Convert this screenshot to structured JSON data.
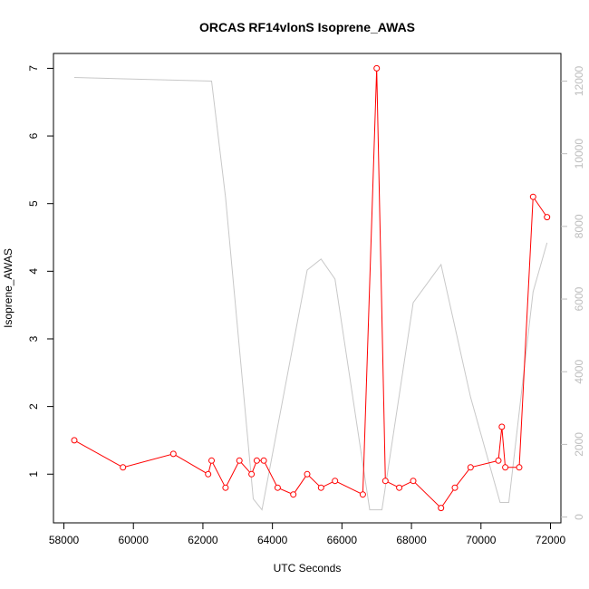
{
  "chart_data": {
    "type": "line",
    "title": "ORCAS RF14vlonS Isoprene_AWAS",
    "xlabel": "UTC Seconds",
    "ylabel": "Isoprene_AWAS",
    "y2label": "",
    "xlim": [
      57700,
      72300
    ],
    "ylim": [
      0.28,
      7.22
    ],
    "y2lim": [
      -160,
      12760
    ],
    "x_ticks": [
      58000,
      60000,
      62000,
      64000,
      66000,
      68000,
      70000,
      72000
    ],
    "y_ticks": [
      1,
      2,
      3,
      4,
      5,
      6,
      7
    ],
    "y2_ticks": [
      0,
      2000,
      4000,
      6000,
      8000,
      10000,
      12000
    ],
    "grid": false,
    "colors": {
      "primary": "#ff0000",
      "secondary": "#c8c8c8",
      "axis": "#000000",
      "secondary_axis": "#bdbdbd"
    },
    "series": [
      {
        "axis": "left",
        "markers": "open-circle",
        "x": [
          58300,
          59700,
          61150,
          62150,
          62250,
          62650,
          63050,
          63400,
          63550,
          63750,
          64150,
          64600,
          65000,
          65400,
          65800,
          66600,
          67000,
          67250,
          67650,
          68050,
          68850,
          69250,
          69700,
          70500,
          70600,
          70700,
          71100,
          71500,
          71900
        ],
        "y": [
          1.5,
          1.1,
          1.3,
          1.0,
          1.2,
          0.8,
          1.2,
          1.0,
          1.2,
          1.2,
          0.8,
          0.7,
          1.0,
          0.8,
          0.9,
          0.7,
          7.0,
          0.9,
          0.8,
          0.9,
          0.5,
          0.8,
          1.1,
          1.2,
          1.7,
          1.1,
          1.1,
          5.1,
          4.8
        ]
      },
      {
        "axis": "right",
        "markers": "none",
        "x": [
          58300,
          62250,
          62650,
          63450,
          63700,
          65000,
          65400,
          65800,
          66800,
          67150,
          68050,
          68850,
          69700,
          70550,
          70800,
          71500,
          71900
        ],
        "y": [
          12100,
          12000,
          8800,
          500,
          200,
          6800,
          7100,
          6550,
          200,
          200,
          5900,
          6950,
          3300,
          400,
          400,
          6200,
          7550
        ]
      }
    ]
  }
}
